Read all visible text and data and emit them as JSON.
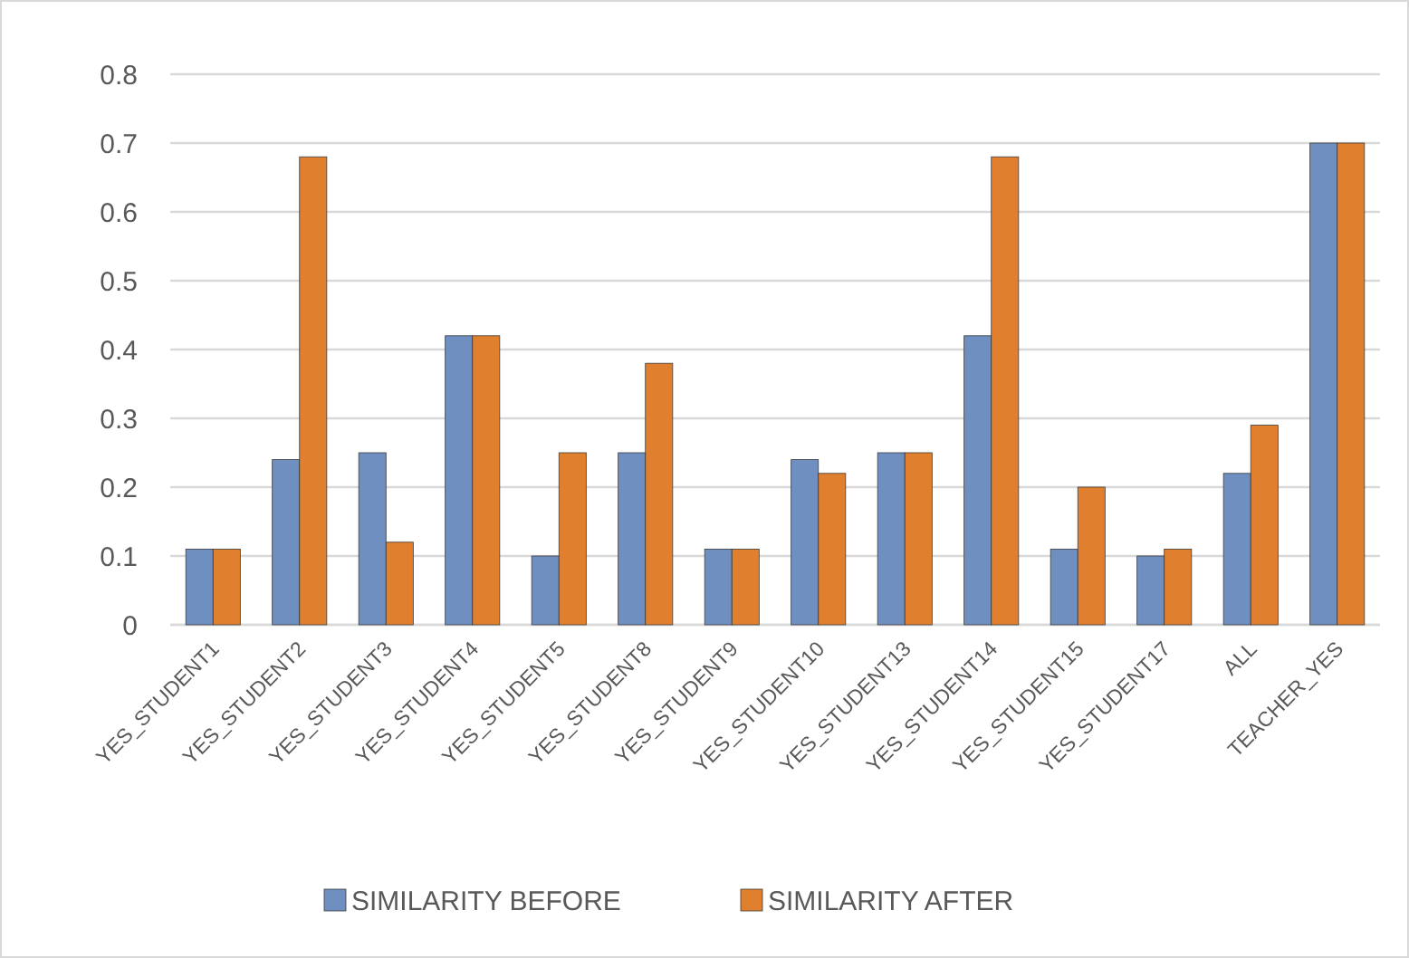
{
  "chart_data": {
    "type": "bar",
    "categories": [
      "YES_STUDENT1",
      "YES_STUDENT2",
      "YES_STUDENT3",
      "YES_STUDENT4",
      "YES_STUDENT5",
      "YES_STUDENT8",
      "YES_STUDENT9",
      "YES_STUDENT10",
      "YES_STUDENT13",
      "YES_STUDENT14",
      "YES_STUDENT15",
      "YES_STUDENT17",
      "ALL",
      "TEACHER_YES"
    ],
    "series": [
      {
        "name": "SIMILARITY BEFORE",
        "color": "#6f8fc0",
        "values": [
          0.11,
          0.24,
          0.25,
          0.42,
          0.1,
          0.25,
          0.11,
          0.24,
          0.25,
          0.42,
          0.11,
          0.1,
          0.22,
          0.7
        ]
      },
      {
        "name": "SIMILARITY AFTER",
        "color": "#e0802e",
        "values": [
          0.11,
          0.68,
          0.12,
          0.42,
          0.25,
          0.38,
          0.11,
          0.22,
          0.25,
          0.68,
          0.2,
          0.11,
          0.29,
          0.7
        ]
      }
    ],
    "ylim": [
      0,
      0.8
    ],
    "yticks": [
      0,
      0.1,
      0.2,
      0.3,
      0.4,
      0.5,
      0.6,
      0.7,
      0.8
    ],
    "grid": "y",
    "legend": "bottom"
  }
}
